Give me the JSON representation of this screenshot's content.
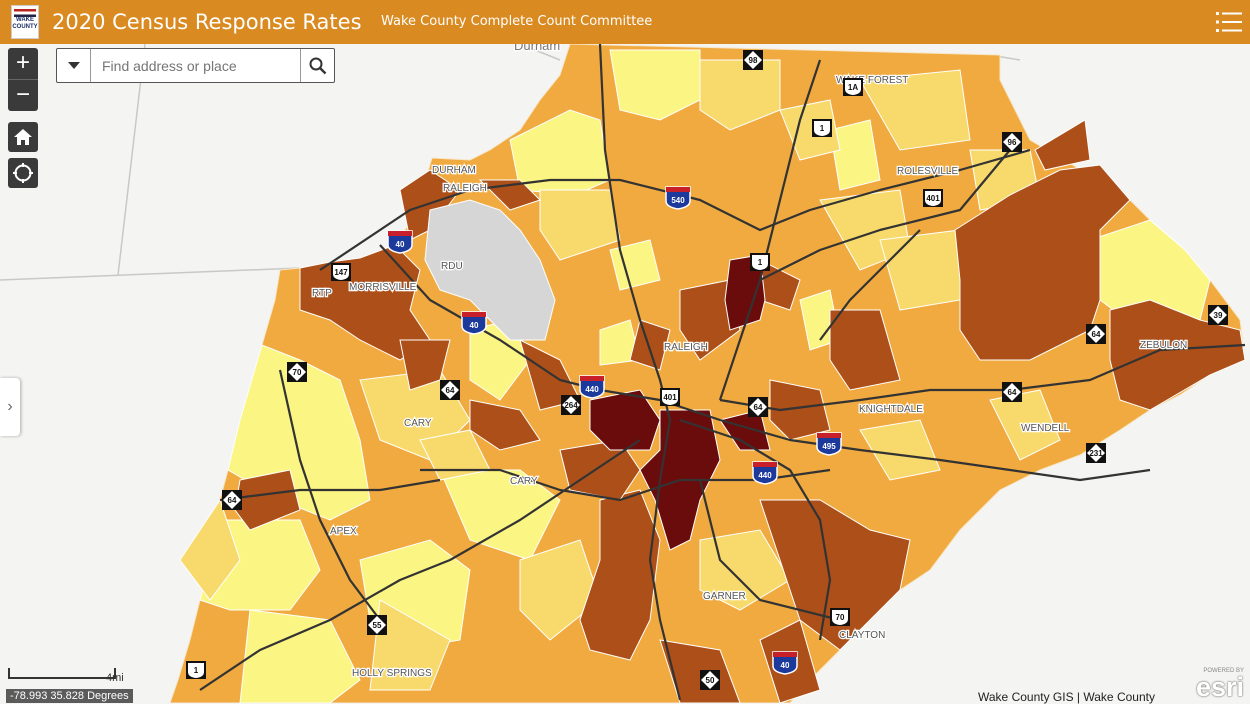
{
  "header": {
    "title": "2020 Census Response Rates",
    "subtitle": "Wake County Complete Count Committee",
    "logo_text": "WAKE COUNTY",
    "colors": {
      "bar": "#d98a20",
      "text": "#ffffff"
    }
  },
  "search": {
    "placeholder": "Find address or place"
  },
  "controls": {
    "zoom_in": "+",
    "zoom_out": "−",
    "home": "home-icon",
    "locate": "locate-icon",
    "side_panel": "›"
  },
  "map": {
    "place_labels": [
      "Durham",
      "DURHAM",
      "RALEIGH",
      "RDU",
      "RTP",
      "MORRISVILLE",
      "WAKE FOREST",
      "ROLESVILLE",
      "RALEIGH",
      "KNIGHTDALE",
      "ZEBULON",
      "WENDELL",
      "CARY",
      "CARY",
      "APEX",
      "GARNER",
      "CLAYTON",
      "HOLLY SPRINGS"
    ],
    "route_shields": [
      "98",
      "1A",
      "1",
      "96",
      "401",
      "540",
      "1",
      "40",
      "147",
      "40",
      "440",
      "64",
      "401",
      "64",
      "495",
      "440",
      "64",
      "264",
      "64",
      "39",
      "231",
      "64",
      "55",
      "1",
      "70",
      "40",
      "50",
      "70"
    ],
    "palette": {
      "very_light": "#fbf583",
      "light": "#f8da6c",
      "medium": "#f0aa3f",
      "dark": "#ad4f18",
      "darkest": "#6b0c0c",
      "airport": "#d6d6d6",
      "background": "#f4f4f2"
    }
  },
  "scale": {
    "label": "4mi"
  },
  "coordinates": "-78.993 35.828 Degrees",
  "attribution": "Wake County GIS | Wake County",
  "esri": {
    "powered_by": "POWERED BY",
    "logo": "esri"
  }
}
